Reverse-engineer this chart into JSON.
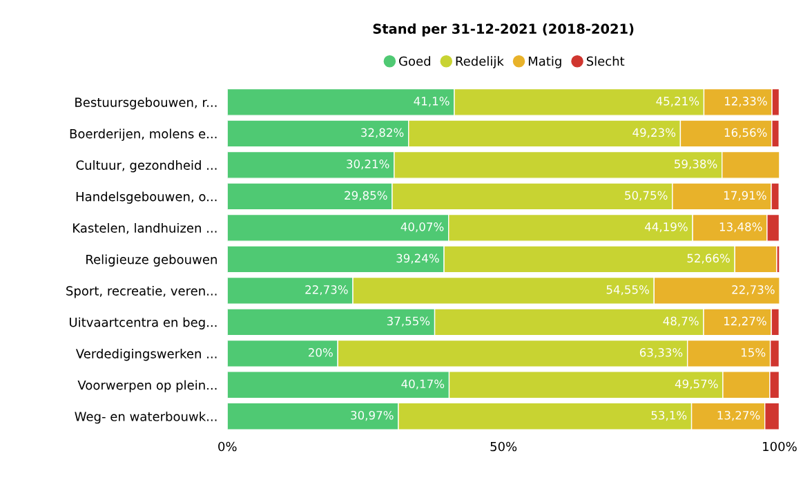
{
  "chart_data": {
    "type": "bar",
    "orientation": "horizontal",
    "stacked": true,
    "title": "Stand per 31-12-2021 (2018-2021)",
    "categories": [
      "Bestuursgebouwen, r...",
      "Boerderijen, molens e...",
      "Cultuur, gezondheid ...",
      "Handelsgebouwen, o...",
      "Kastelen, landhuizen ...",
      "Religieuze gebouwen",
      "Sport, recreatie, veren...",
      "Uitvaartcentra en beg...",
      "Verdedigingswerken ...",
      "Voorwerpen op plein...",
      "Weg- en waterbouwk..."
    ],
    "series": [
      {
        "name": "Goed",
        "color": "#4fc973",
        "values": [
          41.1,
          32.82,
          30.21,
          29.85,
          40.07,
          39.24,
          22.73,
          37.55,
          20,
          40.17,
          30.97
        ],
        "value_labels": [
          "41,1%",
          "32,82%",
          "30,21%",
          "29,85%",
          "40,07%",
          "39,24%",
          "22,73%",
          "37,55%",
          "20%",
          "40,17%",
          "30,97%"
        ]
      },
      {
        "name": "Redelijk",
        "color": "#c8d332",
        "values": [
          45.21,
          49.23,
          59.38,
          50.75,
          44.19,
          52.66,
          54.55,
          48.7,
          63.33,
          49.57,
          53.1
        ],
        "value_labels": [
          "45,21%",
          "49,23%",
          "59,38%",
          "50,75%",
          "44,19%",
          "52,66%",
          "54,55%",
          "48,7%",
          "63,33%",
          "49,57%",
          "53,1%"
        ]
      },
      {
        "name": "Matig",
        "color": "#e8b22a",
        "values": [
          12.33,
          16.56,
          10.4,
          17.91,
          13.48,
          7.6,
          22.73,
          12.27,
          15,
          8.5,
          13.27
        ],
        "value_labels": [
          "12,33%",
          "16,56%",
          null,
          "17,91%",
          "13,48%",
          null,
          "22,73%",
          "12,27%",
          "15%",
          null,
          "13,27%"
        ]
      },
      {
        "name": "Slecht",
        "color": "#d0362f",
        "values": [
          1.3,
          1.3,
          null,
          1.4,
          2.2,
          0.5,
          null,
          1.4,
          1.6,
          1.7,
          2.6
        ]
      }
    ],
    "xlim": [
      0,
      100
    ],
    "xticks": [
      {
        "value": 0,
        "label": "0%"
      },
      {
        "value": 50,
        "label": "50%"
      },
      {
        "value": 100,
        "label": "100%"
      }
    ],
    "legend": "top",
    "grid": false
  }
}
